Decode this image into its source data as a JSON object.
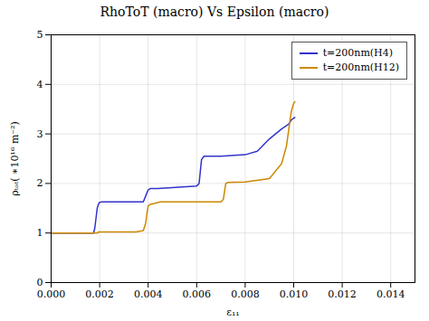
{
  "chart_data": {
    "type": "line",
    "title": "RhoToT (macro) Vs Epsilon (macro)",
    "xlabel": "ε₁₁",
    "ylabel": "ρₜₒₜ( ∗10¹⁶ m⁻²)",
    "xlim": [
      0.0,
      0.015
    ],
    "ylim": [
      0.0,
      5.0
    ],
    "xticks": [
      {
        "value": 0.0,
        "label": "0.000"
      },
      0.002,
      0.004,
      0.006,
      0.008,
      {
        "value": 0.01,
        "label": "0.010"
      },
      0.012,
      0.014
    ],
    "yticks": [
      0,
      1,
      2,
      3,
      4,
      5
    ],
    "grid": true,
    "legend": "upper right",
    "series": [
      {
        "name": "t=200nm(H4)",
        "color": "#3333cc",
        "x": [
          0.0,
          0.001,
          0.00175,
          0.0018,
          0.00185,
          0.0019,
          0.00195,
          0.002,
          0.0021,
          0.0038,
          0.0039,
          0.004,
          0.0041,
          0.0042,
          0.0044,
          0.006,
          0.0061,
          0.0062,
          0.0063,
          0.0064,
          0.007,
          0.008,
          0.0085,
          0.009,
          0.0095,
          0.0098,
          0.0099,
          0.01,
          0.01005
        ],
        "values": [
          1.0,
          1.0,
          1.0,
          1.1,
          1.3,
          1.5,
          1.58,
          1.62,
          1.63,
          1.63,
          1.75,
          1.87,
          1.9,
          1.9,
          1.9,
          1.95,
          2.0,
          2.48,
          2.55,
          2.55,
          2.55,
          2.58,
          2.65,
          2.9,
          3.1,
          3.2,
          3.28,
          3.32,
          3.33
        ]
      },
      {
        "name": "t=200nm(H12)",
        "color": "#cc8800",
        "x": [
          0.0,
          0.001,
          0.00175,
          0.0018,
          0.00185,
          0.0019,
          0.00195,
          0.002,
          0.0035,
          0.0038,
          0.0039,
          0.00395,
          0.004,
          0.0041,
          0.0043,
          0.0045,
          0.007,
          0.0071,
          0.0072,
          0.0073,
          0.008,
          0.009,
          0.0095,
          0.0097,
          0.0098,
          0.0099,
          0.01,
          0.01005
        ],
        "values": [
          1.0,
          1.0,
          1.0,
          1.0,
          1.0,
          1.0,
          1.02,
          1.02,
          1.02,
          1.05,
          1.2,
          1.4,
          1.55,
          1.58,
          1.6,
          1.63,
          1.63,
          1.68,
          2.0,
          2.02,
          2.03,
          2.1,
          2.4,
          2.75,
          3.1,
          3.45,
          3.62,
          3.65
        ]
      }
    ]
  }
}
